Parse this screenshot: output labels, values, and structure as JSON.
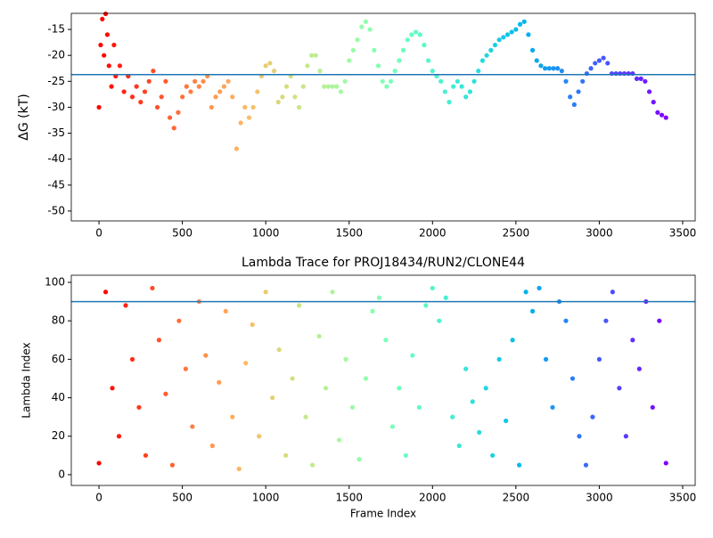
{
  "chart_data": [
    {
      "type": "scatter",
      "ylabel": "ΔG (kT)",
      "colormap": "rainbow_r",
      "hline": -23.7,
      "hline_color": "#1f77b4",
      "xlim": [
        -166,
        3575
      ],
      "ylim": [
        -51.9,
        -11.9
      ],
      "xticks": [
        0,
        500,
        1000,
        1500,
        2000,
        2500,
        3000,
        3500
      ],
      "yticks": [
        -15,
        -20,
        -25,
        -30,
        -35,
        -40,
        -45,
        -50
      ],
      "x": [
        0,
        10,
        20,
        30,
        40,
        50,
        60,
        75,
        90,
        100,
        125,
        150,
        175,
        200,
        225,
        250,
        275,
        300,
        325,
        350,
        375,
        400,
        425,
        450,
        475,
        500,
        525,
        550,
        575,
        600,
        625,
        650,
        675,
        700,
        725,
        750,
        775,
        800,
        825,
        850,
        875,
        900,
        925,
        950,
        975,
        1000,
        1025,
        1050,
        1075,
        1100,
        1125,
        1150,
        1175,
        1200,
        1225,
        1250,
        1275,
        1300,
        1325,
        1350,
        1375,
        1400,
        1425,
        1450,
        1475,
        1500,
        1525,
        1550,
        1575,
        1600,
        1625,
        1650,
        1675,
        1700,
        1725,
        1750,
        1775,
        1800,
        1825,
        1850,
        1875,
        1900,
        1925,
        1950,
        1975,
        2000,
        2025,
        2050,
        2075,
        2100,
        2125,
        2150,
        2175,
        2200,
        2225,
        2250,
        2275,
        2300,
        2325,
        2350,
        2375,
        2400,
        2425,
        2450,
        2475,
        2500,
        2525,
        2550,
        2575,
        2600,
        2625,
        2650,
        2675,
        2700,
        2725,
        2750,
        2775,
        2800,
        2825,
        2850,
        2875,
        2900,
        2925,
        2950,
        2975,
        3000,
        3025,
        3050,
        3075,
        3100,
        3125,
        3150,
        3175,
        3200,
        3225,
        3250,
        3275,
        3300,
        3325,
        3350,
        3375,
        3400
      ],
      "values": [
        -30,
        -18,
        -13,
        -20,
        -12,
        -16,
        -22,
        -26,
        -18,
        -24,
        -22,
        -27,
        -24,
        -28,
        -26,
        -29,
        -27,
        -25,
        -23,
        -30,
        -28,
        -25,
        -32,
        -34,
        -31,
        -28,
        -26,
        -27,
        -25,
        -26,
        -25,
        -24,
        -30,
        -28,
        -27,
        -26,
        -25,
        -28,
        -38,
        -33,
        -30,
        -32,
        -30,
        -27,
        -24,
        -22,
        -21.5,
        -23,
        -29,
        -28,
        -26,
        -24,
        -28,
        -30,
        -26,
        -22,
        -20,
        -20,
        -23,
        -26,
        -26,
        -26,
        -26,
        -27,
        -25,
        -21,
        -19,
        -17,
        -14.5,
        -13.5,
        -15,
        -19,
        -22,
        -25,
        -26,
        -25,
        -23,
        -21,
        -19,
        -17,
        -16,
        -15.5,
        -16,
        -18,
        -21,
        -23,
        -24,
        -25,
        -27,
        -29,
        -26,
        -25,
        -26,
        -28,
        -27,
        -25,
        -23,
        -21,
        -20,
        -19,
        -18,
        -17,
        -16.5,
        -16,
        -15.5,
        -15,
        -14,
        -13.5,
        -16,
        -19,
        -21,
        -22,
        -22.5,
        -22.5,
        -22.5,
        -22.5,
        -23,
        -25,
        -28,
        -29.5,
        -27,
        -25,
        -23.5,
        -22.5,
        -21.5,
        -21,
        -20.5,
        -21.5,
        -23.5,
        -23.5,
        -23.5,
        -23.5,
        -23.5,
        -23.5,
        -24.5,
        -24.5,
        -25,
        -27,
        -29,
        -31,
        -31.5,
        -32
      ]
    },
    {
      "type": "scatter",
      "title": "Lambda Trace for PROJ18434/RUN2/CLONE44",
      "xlabel": "Frame Index",
      "ylabel": "Lambda Index",
      "colormap": "rainbow_r",
      "hline": 90,
      "hline_color": "#1f77b4",
      "xlim": [
        -166,
        3575
      ],
      "ylim": [
        -5.6,
        103.7
      ],
      "xticks": [
        0,
        500,
        1000,
        1500,
        2000,
        2500,
        3000,
        3500
      ],
      "yticks": [
        0,
        20,
        40,
        60,
        80,
        100
      ],
      "x": [
        0,
        40,
        80,
        120,
        160,
        200,
        240,
        280,
        320,
        360,
        400,
        440,
        480,
        520,
        560,
        600,
        640,
        680,
        720,
        760,
        800,
        840,
        880,
        920,
        960,
        1000,
        1040,
        1080,
        1120,
        1160,
        1200,
        1240,
        1280,
        1320,
        1360,
        1400,
        1440,
        1480,
        1520,
        1560,
        1600,
        1640,
        1680,
        1720,
        1760,
        1800,
        1840,
        1880,
        1920,
        1960,
        2000,
        2040,
        2080,
        2120,
        2160,
        2200,
        2240,
        2280,
        2320,
        2360,
        2400,
        2440,
        2480,
        2520,
        2560,
        2600,
        2640,
        2680,
        2720,
        2760,
        2800,
        2840,
        2880,
        2920,
        2960,
        3000,
        3040,
        3080,
        3120,
        3160,
        3200,
        3240,
        3280,
        3320,
        3360,
        3400
      ],
      "values": [
        6,
        95,
        45,
        20,
        88,
        60,
        35,
        10,
        97,
        70,
        42,
        5,
        80,
        55,
        25,
        90,
        62,
        15,
        48,
        85,
        30,
        3,
        58,
        78,
        20,
        95,
        40,
        65,
        10,
        50,
        88,
        30,
        5,
        72,
        45,
        95,
        18,
        60,
        35,
        8,
        50,
        85,
        92,
        70,
        25,
        45,
        10,
        62,
        35,
        88,
        97,
        80,
        92,
        30,
        15,
        55,
        38,
        22,
        45,
        10,
        60,
        28,
        70,
        5,
        95,
        85,
        97,
        60,
        35,
        90,
        80,
        50,
        20,
        5,
        30,
        60,
        80,
        95,
        45,
        20,
        70,
        55,
        90,
        35,
        80,
        6
      ]
    }
  ]
}
